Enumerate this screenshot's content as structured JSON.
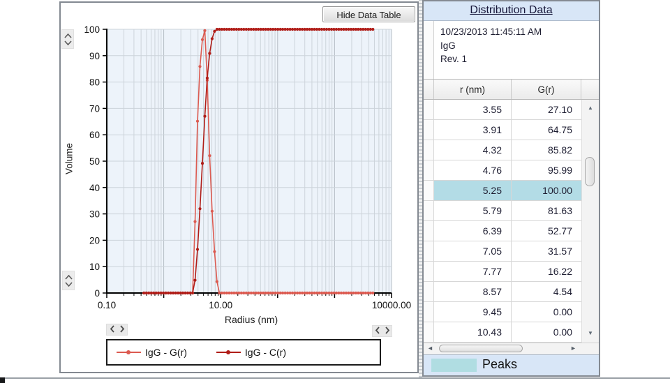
{
  "chart": {
    "hide_data_table_button": "Hide Data Table",
    "y_axis_label": "Volume",
    "x_axis_label": "Radius (nm)",
    "legend": [
      {
        "label": "IgG - G(r)",
        "color": "#dc5a50"
      },
      {
        "label": "IgG - C(r)",
        "color": "#b01d18"
      }
    ]
  },
  "chart_data": {
    "type": "line",
    "title": "",
    "xlabel": "Radius (nm)",
    "ylabel": "Volume",
    "x_scale": "log",
    "xlim": [
      0.1,
      10000
    ],
    "ylim": [
      0,
      100
    ],
    "grid": true,
    "legend_position": "bottom",
    "y_ticks": [
      0,
      10,
      20,
      30,
      40,
      50,
      60,
      70,
      80,
      90,
      100
    ],
    "x_ticks": [
      {
        "value": 0.1,
        "label": "0.10"
      },
      {
        "value": 10,
        "label": "10.00"
      },
      {
        "value": 10000,
        "label": "10000.00"
      }
    ],
    "sampling": {
      "base_r": 3.55,
      "ratio": 1.1035,
      "k_min": -21,
      "k_max": 73
    },
    "series": [
      {
        "name": "IgG - G(r)",
        "color": "#dc5a50",
        "peak_r": [
          3.22,
          3.55,
          3.91,
          4.32,
          4.76,
          5.25,
          5.79,
          6.39,
          7.05,
          7.77,
          8.57,
          9.45
        ],
        "peak_g": [
          0,
          27.1,
          64.75,
          85.82,
          95.99,
          100.0,
          81.63,
          52.77,
          31.57,
          16.22,
          4.54,
          0.0
        ]
      },
      {
        "name": "IgG - C(r)",
        "color": "#b01d18",
        "derived": "cumulative_of_G_normalized_to_100"
      }
    ]
  },
  "data_panel": {
    "title": "Distribution Data",
    "meta_lines": [
      "10/23/2013 11:45:11 AM",
      "IgG",
      "Rev. 1"
    ],
    "columns": [
      "r (nm)",
      "G(r)"
    ],
    "rows": [
      [
        "3.55",
        "27.10"
      ],
      [
        "3.91",
        "64.75"
      ],
      [
        "4.32",
        "85.82"
      ],
      [
        "4.76",
        "95.99"
      ],
      [
        "5.25",
        "100.00"
      ],
      [
        "5.79",
        "81.63"
      ],
      [
        "6.39",
        "52.77"
      ],
      [
        "7.05",
        "31.57"
      ],
      [
        "7.77",
        "16.22"
      ],
      [
        "8.57",
        "4.54"
      ],
      [
        "9.45",
        "0.00"
      ],
      [
        "10.43",
        "0.00"
      ]
    ],
    "selected_row_index": 4,
    "selected_row_color": "#b3dce6",
    "title_bar_color": "#d8e6f7",
    "peaks_label": "Peaks",
    "peaks_swatch_color": "#b0dde2"
  },
  "icons": {
    "scroll-up": "▲",
    "scroll-down": "▼",
    "scroll-left": "◄",
    "scroll-right": "►"
  }
}
